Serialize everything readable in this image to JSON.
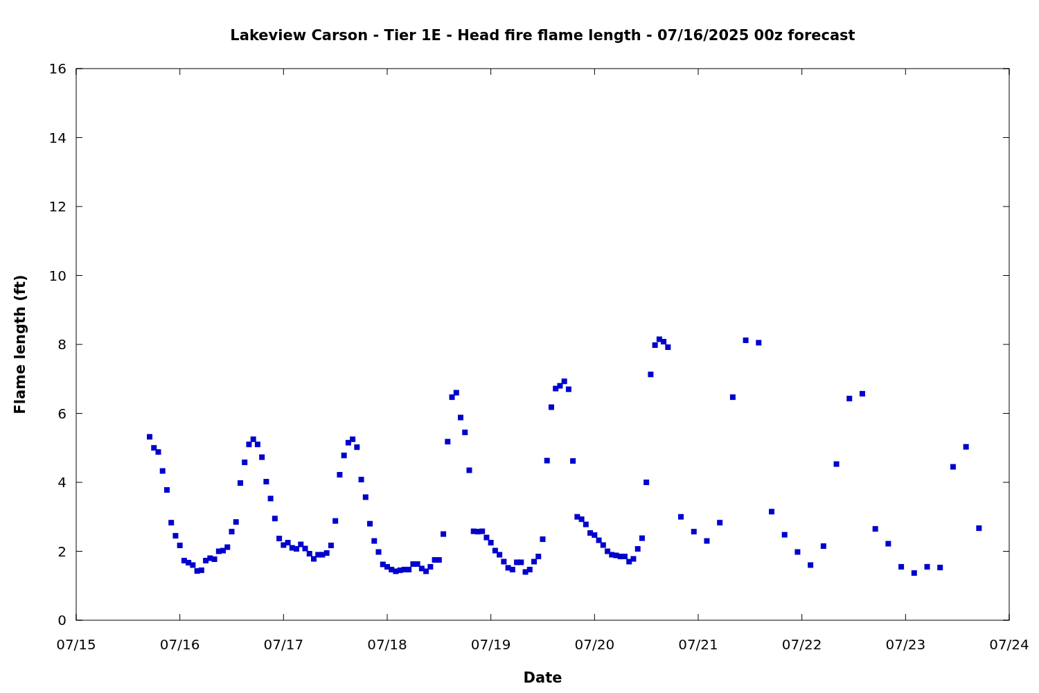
{
  "chart_data": {
    "type": "scatter",
    "title": "Lakeview Carson - Tier 1E - Head fire flame length - 07/16/2025 00z forecast",
    "xlabel": "Date",
    "ylabel": "Flame length (ft)",
    "marker": "square",
    "grid": false,
    "xlim": [
      "2025-07-15",
      "2025-07-24"
    ],
    "xticks": [
      {
        "value": "2025-07-15",
        "label": "07/15"
      },
      {
        "value": "2025-07-16",
        "label": "07/16"
      },
      {
        "value": "2025-07-17",
        "label": "07/17"
      },
      {
        "value": "2025-07-18",
        "label": "07/18"
      },
      {
        "value": "2025-07-19",
        "label": "07/19"
      },
      {
        "value": "2025-07-20",
        "label": "07/20"
      },
      {
        "value": "2025-07-21",
        "label": "07/21"
      },
      {
        "value": "2025-07-22",
        "label": "07/22"
      },
      {
        "value": "2025-07-23",
        "label": "07/23"
      },
      {
        "value": "2025-07-24",
        "label": "07/24"
      }
    ],
    "ylim": [
      0,
      16
    ],
    "yticks": [
      0,
      2,
      4,
      6,
      8,
      10,
      12,
      14,
      16
    ],
    "series": [
      {
        "color": "#0000cc",
        "x": [
          "2025-07-15T17:00",
          "2025-07-15T18:00",
          "2025-07-15T19:00",
          "2025-07-15T20:00",
          "2025-07-15T21:00",
          "2025-07-15T22:00",
          "2025-07-15T23:00",
          "2025-07-16T00:00",
          "2025-07-16T01:00",
          "2025-07-16T02:00",
          "2025-07-16T03:00",
          "2025-07-16T04:00",
          "2025-07-16T05:00",
          "2025-07-16T06:00",
          "2025-07-16T07:00",
          "2025-07-16T08:00",
          "2025-07-16T09:00",
          "2025-07-16T10:00",
          "2025-07-16T11:00",
          "2025-07-16T12:00",
          "2025-07-16T13:00",
          "2025-07-16T14:00",
          "2025-07-16T15:00",
          "2025-07-16T16:00",
          "2025-07-16T17:00",
          "2025-07-16T18:00",
          "2025-07-16T19:00",
          "2025-07-16T20:00",
          "2025-07-16T21:00",
          "2025-07-16T22:00",
          "2025-07-16T23:00",
          "2025-07-17T00:00",
          "2025-07-17T01:00",
          "2025-07-17T02:00",
          "2025-07-17T03:00",
          "2025-07-17T04:00",
          "2025-07-17T05:00",
          "2025-07-17T06:00",
          "2025-07-17T07:00",
          "2025-07-17T08:00",
          "2025-07-17T09:00",
          "2025-07-17T10:00",
          "2025-07-17T11:00",
          "2025-07-17T12:00",
          "2025-07-17T13:00",
          "2025-07-17T14:00",
          "2025-07-17T15:00",
          "2025-07-17T16:00",
          "2025-07-17T17:00",
          "2025-07-17T18:00",
          "2025-07-17T19:00",
          "2025-07-17T20:00",
          "2025-07-17T21:00",
          "2025-07-17T22:00",
          "2025-07-17T23:00",
          "2025-07-18T00:00",
          "2025-07-18T01:00",
          "2025-07-18T02:00",
          "2025-07-18T03:00",
          "2025-07-18T04:00",
          "2025-07-18T05:00",
          "2025-07-18T06:00",
          "2025-07-18T07:00",
          "2025-07-18T08:00",
          "2025-07-18T09:00",
          "2025-07-18T10:00",
          "2025-07-18T11:00",
          "2025-07-18T12:00",
          "2025-07-18T13:00",
          "2025-07-18T14:00",
          "2025-07-18T15:00",
          "2025-07-18T16:00",
          "2025-07-18T17:00",
          "2025-07-18T18:00",
          "2025-07-18T19:00",
          "2025-07-18T20:00",
          "2025-07-18T21:00",
          "2025-07-18T22:00",
          "2025-07-18T23:00",
          "2025-07-19T00:00",
          "2025-07-19T01:00",
          "2025-07-19T02:00",
          "2025-07-19T03:00",
          "2025-07-19T04:00",
          "2025-07-19T05:00",
          "2025-07-19T06:00",
          "2025-07-19T07:00",
          "2025-07-19T08:00",
          "2025-07-19T09:00",
          "2025-07-19T10:00",
          "2025-07-19T11:00",
          "2025-07-19T12:00",
          "2025-07-19T13:00",
          "2025-07-19T14:00",
          "2025-07-19T15:00",
          "2025-07-19T16:00",
          "2025-07-19T17:00",
          "2025-07-19T18:00",
          "2025-07-19T19:00",
          "2025-07-19T20:00",
          "2025-07-19T21:00",
          "2025-07-19T22:00",
          "2025-07-19T23:00",
          "2025-07-20T00:00",
          "2025-07-20T01:00",
          "2025-07-20T02:00",
          "2025-07-20T03:00",
          "2025-07-20T04:00",
          "2025-07-20T05:00",
          "2025-07-20T06:00",
          "2025-07-20T07:00",
          "2025-07-20T08:00",
          "2025-07-20T09:00",
          "2025-07-20T10:00",
          "2025-07-20T11:00",
          "2025-07-20T12:00",
          "2025-07-20T13:00",
          "2025-07-20T14:00",
          "2025-07-20T15:00",
          "2025-07-20T16:00",
          "2025-07-20T17:00",
          "2025-07-20T20:00",
          "2025-07-20T23:00",
          "2025-07-21T02:00",
          "2025-07-21T05:00",
          "2025-07-21T08:00",
          "2025-07-21T11:00",
          "2025-07-21T14:00",
          "2025-07-21T17:00",
          "2025-07-21T20:00",
          "2025-07-21T23:00",
          "2025-07-22T02:00",
          "2025-07-22T05:00",
          "2025-07-22T08:00",
          "2025-07-22T11:00",
          "2025-07-22T14:00",
          "2025-07-22T17:00",
          "2025-07-22T20:00",
          "2025-07-22T23:00",
          "2025-07-23T02:00",
          "2025-07-23T05:00",
          "2025-07-23T08:00",
          "2025-07-23T11:00",
          "2025-07-23T14:00",
          "2025-07-23T17:00"
        ],
        "values": [
          5.32,
          5.0,
          4.88,
          4.33,
          3.78,
          2.83,
          2.45,
          2.17,
          1.73,
          1.67,
          1.6,
          1.43,
          1.45,
          1.73,
          1.8,
          1.77,
          2.0,
          2.02,
          2.12,
          2.57,
          2.85,
          3.98,
          4.58,
          5.1,
          5.25,
          5.1,
          4.73,
          4.02,
          3.53,
          2.95,
          2.37,
          2.18,
          2.25,
          2.1,
          2.07,
          2.2,
          2.08,
          1.93,
          1.78,
          1.9,
          1.9,
          1.95,
          2.17,
          2.88,
          4.22,
          4.78,
          5.15,
          5.25,
          5.02,
          4.08,
          3.57,
          2.8,
          2.3,
          1.98,
          1.62,
          1.55,
          1.47,
          1.42,
          1.45,
          1.47,
          1.47,
          1.63,
          1.63,
          1.5,
          1.42,
          1.55,
          1.75,
          1.75,
          2.5,
          5.18,
          6.47,
          6.6,
          5.88,
          5.45,
          4.35,
          2.58,
          2.57,
          2.58,
          2.4,
          2.25,
          2.02,
          1.9,
          1.7,
          1.52,
          1.47,
          1.68,
          1.68,
          1.4,
          1.47,
          1.7,
          1.85,
          2.35,
          4.63,
          6.18,
          6.72,
          6.8,
          6.93,
          6.7,
          4.62,
          3.0,
          2.93,
          2.78,
          2.53,
          2.47,
          2.32,
          2.18,
          2.0,
          1.9,
          1.88,
          1.85,
          1.85,
          1.7,
          1.78,
          2.07,
          2.38,
          4.0,
          7.13,
          7.98,
          8.15,
          8.08,
          7.92,
          3.0,
          2.57,
          2.3,
          2.83,
          6.47,
          8.12,
          8.05,
          3.15,
          2.48,
          1.98,
          1.6,
          2.15,
          4.53,
          6.43,
          6.57,
          2.65,
          2.22,
          1.55,
          1.37,
          1.55,
          1.53,
          4.45,
          5.03,
          2.67
        ]
      }
    ]
  }
}
